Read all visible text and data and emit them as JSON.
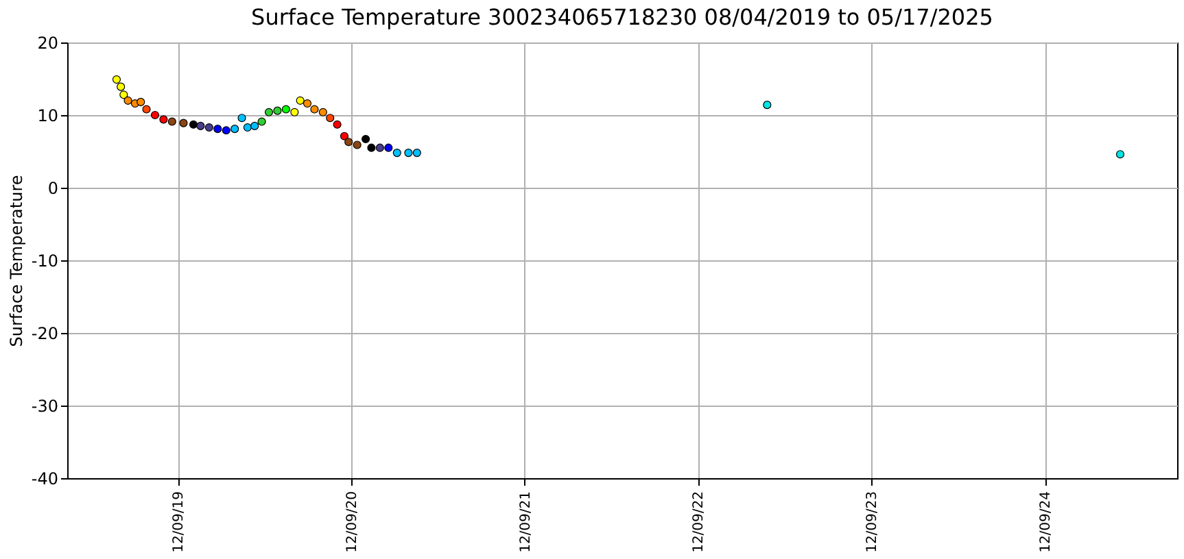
{
  "chart_data": {
    "type": "scatter",
    "title": "Surface Temperature 300234065718230  08/04/2019 to 05/17/2025",
    "ylabel": "Surface Temperature",
    "series": [
      {
        "x": [
          "2019-08-02",
          "2019-08-11",
          "2019-08-17",
          "2019-08-26",
          "2019-09-10",
          "2019-09-22",
          "2019-10-04",
          "2019-10-22",
          "2019-11-09",
          "2019-11-27",
          "2019-12-21",
          "2020-01-11",
          "2020-01-26",
          "2020-02-13",
          "2020-03-02",
          "2020-03-20",
          "2020-04-07",
          "2020-04-22",
          "2020-05-04",
          "2020-05-19",
          "2020-06-03",
          "2020-06-18",
          "2020-07-06",
          "2020-07-24",
          "2020-08-11",
          "2020-08-23",
          "2020-09-07",
          "2020-09-22",
          "2020-10-10",
          "2020-10-25",
          "2020-11-09",
          "2020-11-24",
          "2020-12-03",
          "2020-12-21",
          "2021-01-08",
          "2021-01-20",
          "2021-02-07",
          "2021-02-25",
          "2021-03-15",
          "2021-04-08",
          "2021-04-26",
          "2023-05-04",
          "2025-05-17"
        ],
        "values": [
          14.9,
          13.9,
          12.8,
          12.0,
          11.6,
          11.8,
          10.8,
          10.0,
          9.4,
          9.1,
          8.9,
          8.7,
          8.5,
          8.3,
          8.1,
          7.9,
          8.1,
          9.6,
          8.3,
          8.5,
          9.1,
          10.4,
          10.6,
          10.8,
          10.4,
          12.0,
          11.6,
          10.8,
          10.4,
          9.6,
          8.7,
          7.1,
          6.3,
          5.9,
          6.7,
          5.5,
          5.5,
          5.5,
          4.8,
          4.8,
          4.8,
          11.4,
          4.6
        ],
        "colors": [
          "#ffff00",
          "#ffff00",
          "#ffff00",
          "#ff8c00",
          "#ff8c00",
          "#ff8c00",
          "#ff4500",
          "#ff0000",
          "#ff0000",
          "#8b4513",
          "#8b4513",
          "#000000",
          "#483d8b",
          "#483d8b",
          "#0000ff",
          "#0000ff",
          "#00bfff",
          "#00bfff",
          "#00bfff",
          "#00bfff",
          "#32cd32",
          "#32cd32",
          "#32cd32",
          "#00ff00",
          "#ffff00",
          "#ffff00",
          "#ff8c00",
          "#ff8c00",
          "#ff8c00",
          "#ff4500",
          "#ff0000",
          "#ff0000",
          "#8b4513",
          "#8b4513",
          "#000000",
          "#000000",
          "#483d8b",
          "#0000ff",
          "#00bfff",
          "#00bfff",
          "#00bfff",
          "#00e5e5",
          "#00e5e5"
        ]
      }
    ],
    "xlim": [
      "2019-04-20",
      "2025-09-14"
    ],
    "xticks": [
      {
        "value": "2019-12-09",
        "label": "12/09/19"
      },
      {
        "value": "2020-12-09",
        "label": "12/09/20"
      },
      {
        "value": "2021-12-09",
        "label": "12/09/21"
      },
      {
        "value": "2022-12-09",
        "label": "12/09/22"
      },
      {
        "value": "2023-12-09",
        "label": "12/09/23"
      },
      {
        "value": "2024-12-09",
        "label": "12/09/24"
      }
    ],
    "ylim": [
      -40,
      20
    ],
    "yticks": [
      -40,
      -30,
      -20,
      -10,
      0,
      10,
      20
    ],
    "grid": true,
    "marker": "circle"
  }
}
